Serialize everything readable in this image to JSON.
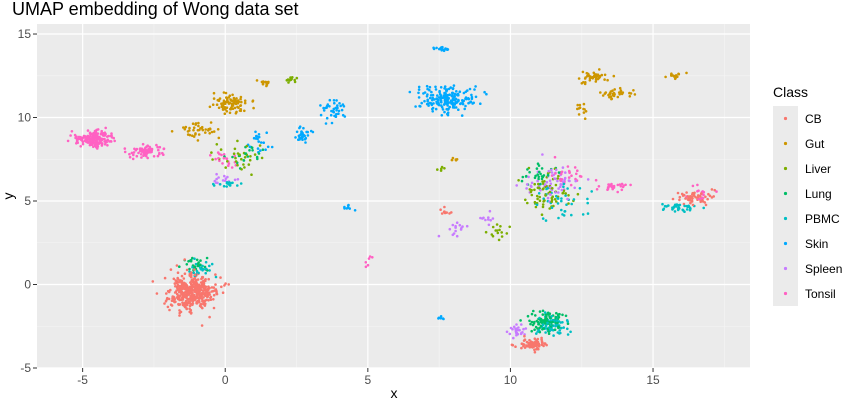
{
  "chart_data": {
    "type": "scatter",
    "title": "UMAP embedding of Wong data set",
    "xlabel": "x",
    "ylabel": "y",
    "xlim": [
      -6.6,
      18.4
    ],
    "ylim": [
      -5,
      15.6
    ],
    "x_ticks": [
      -5,
      0,
      5,
      10,
      15
    ],
    "y_ticks": [
      -5,
      0,
      5,
      10,
      15
    ],
    "grid": true,
    "legend_position": "right",
    "legend_title": "Class",
    "series": [
      {
        "name": "CB",
        "color": "#F8766D",
        "clusters": [
          {
            "cx": -1.2,
            "cy": -0.5,
            "sx": 0.75,
            "sy": 1.0,
            "n": 450
          },
          {
            "cx": 16.5,
            "cy": 5.2,
            "sx": 0.6,
            "sy": 0.4,
            "n": 60
          },
          {
            "cx": 10.8,
            "cy": -3.6,
            "sx": 0.5,
            "sy": 0.35,
            "n": 80
          },
          {
            "cx": 7.8,
            "cy": 4.4,
            "sx": 0.3,
            "sy": 0.2,
            "n": 10
          }
        ]
      },
      {
        "name": "Gut",
        "color": "#CD9600",
        "clusters": [
          {
            "cx": 0.2,
            "cy": 10.8,
            "sx": 0.55,
            "sy": 0.5,
            "n": 90
          },
          {
            "cx": -1.0,
            "cy": 9.2,
            "sx": 0.6,
            "sy": 0.4,
            "n": 40
          },
          {
            "cx": 1.3,
            "cy": 12.1,
            "sx": 0.3,
            "sy": 0.2,
            "n": 18
          },
          {
            "cx": 12.9,
            "cy": 12.4,
            "sx": 0.45,
            "sy": 0.35,
            "n": 45
          },
          {
            "cx": 13.7,
            "cy": 11.4,
            "sx": 0.45,
            "sy": 0.3,
            "n": 35
          },
          {
            "cx": 15.8,
            "cy": 12.5,
            "sx": 0.35,
            "sy": 0.2,
            "n": 15
          },
          {
            "cx": 12.5,
            "cy": 10.5,
            "sx": 0.2,
            "sy": 0.4,
            "n": 12
          },
          {
            "cx": 8.0,
            "cy": 7.5,
            "sx": 0.2,
            "sy": 0.1,
            "n": 6
          }
        ]
      },
      {
        "name": "Liver",
        "color": "#7CAE00",
        "clusters": [
          {
            "cx": 2.3,
            "cy": 12.3,
            "sx": 0.25,
            "sy": 0.25,
            "n": 12
          },
          {
            "cx": 0.5,
            "cy": 7.5,
            "sx": 0.6,
            "sy": 0.9,
            "n": 30
          },
          {
            "cx": 11.2,
            "cy": 5.5,
            "sx": 0.8,
            "sy": 1.0,
            "n": 70
          },
          {
            "cx": 9.6,
            "cy": 3.3,
            "sx": 0.4,
            "sy": 0.4,
            "n": 15
          },
          {
            "cx": 7.5,
            "cy": 7.0,
            "sx": 0.2,
            "sy": 0.2,
            "n": 5
          }
        ]
      },
      {
        "name": "Lung",
        "color": "#00BE67",
        "clusters": [
          {
            "cx": 11.3,
            "cy": -2.2,
            "sx": 0.65,
            "sy": 0.55,
            "n": 90
          },
          {
            "cx": -1.0,
            "cy": 1.2,
            "sx": 0.5,
            "sy": 0.5,
            "n": 25
          },
          {
            "cx": 0.8,
            "cy": 7.8,
            "sx": 0.6,
            "sy": 0.6,
            "n": 20
          },
          {
            "cx": 11.0,
            "cy": 6.5,
            "sx": 0.6,
            "sy": 0.6,
            "n": 30
          }
        ]
      },
      {
        "name": "PBMC",
        "color": "#00BFC4",
        "clusters": [
          {
            "cx": 11.5,
            "cy": -2.5,
            "sx": 0.55,
            "sy": 0.5,
            "n": 70
          },
          {
            "cx": 16.0,
            "cy": 4.6,
            "sx": 0.6,
            "sy": 0.2,
            "n": 40
          },
          {
            "cx": -0.9,
            "cy": 0.9,
            "sx": 0.45,
            "sy": 0.4,
            "n": 25
          },
          {
            "cx": 11.8,
            "cy": 5.0,
            "sx": 0.8,
            "sy": 1.0,
            "n": 40
          },
          {
            "cx": 0.0,
            "cy": 6.0,
            "sx": 0.4,
            "sy": 0.2,
            "n": 15
          }
        ]
      },
      {
        "name": "Skin",
        "color": "#00A9FF",
        "clusters": [
          {
            "cx": 7.8,
            "cy": 11.1,
            "sx": 0.85,
            "sy": 0.7,
            "n": 200
          },
          {
            "cx": 7.6,
            "cy": 14.1,
            "sx": 0.3,
            "sy": 0.12,
            "n": 20
          },
          {
            "cx": 3.8,
            "cy": 10.5,
            "sx": 0.35,
            "sy": 0.6,
            "n": 40
          },
          {
            "cx": 2.8,
            "cy": 9.0,
            "sx": 0.4,
            "sy": 0.5,
            "n": 30
          },
          {
            "cx": 4.3,
            "cy": 4.6,
            "sx": 0.15,
            "sy": 0.2,
            "n": 8
          },
          {
            "cx": 7.5,
            "cy": -2.0,
            "sx": 0.15,
            "sy": 0.1,
            "n": 6
          },
          {
            "cx": 1.2,
            "cy": 8.5,
            "sx": 0.5,
            "sy": 0.6,
            "n": 20
          }
        ]
      },
      {
        "name": "Spleen",
        "color": "#C77CFF",
        "clusters": [
          {
            "cx": 11.5,
            "cy": 6.0,
            "sx": 0.8,
            "sy": 0.9,
            "n": 60
          },
          {
            "cx": 8.1,
            "cy": 3.3,
            "sx": 0.4,
            "sy": 0.3,
            "n": 15
          },
          {
            "cx": 9.1,
            "cy": 4.0,
            "sx": 0.25,
            "sy": 0.4,
            "n": 10
          },
          {
            "cx": 10.3,
            "cy": -2.8,
            "sx": 0.4,
            "sy": 0.3,
            "n": 25
          },
          {
            "cx": 0.0,
            "cy": 6.3,
            "sx": 0.4,
            "sy": 0.3,
            "n": 15
          }
        ]
      },
      {
        "name": "Tonsil",
        "color": "#FF61C3",
        "clusters": [
          {
            "cx": -4.6,
            "cy": 8.7,
            "sx": 0.6,
            "sy": 0.45,
            "n": 180
          },
          {
            "cx": -2.8,
            "cy": 8.0,
            "sx": 0.6,
            "sy": 0.35,
            "n": 80
          },
          {
            "cx": 13.6,
            "cy": 5.9,
            "sx": 0.6,
            "sy": 0.3,
            "n": 25
          },
          {
            "cx": 12.0,
            "cy": 6.6,
            "sx": 0.5,
            "sy": 0.5,
            "n": 25
          },
          {
            "cx": 0.0,
            "cy": 7.5,
            "sx": 0.5,
            "sy": 0.5,
            "n": 20
          },
          {
            "cx": 16.6,
            "cy": 5.4,
            "sx": 0.4,
            "sy": 0.35,
            "n": 20
          },
          {
            "cx": 5.0,
            "cy": 1.5,
            "sx": 0.2,
            "sy": 0.4,
            "n": 6
          }
        ]
      }
    ]
  }
}
